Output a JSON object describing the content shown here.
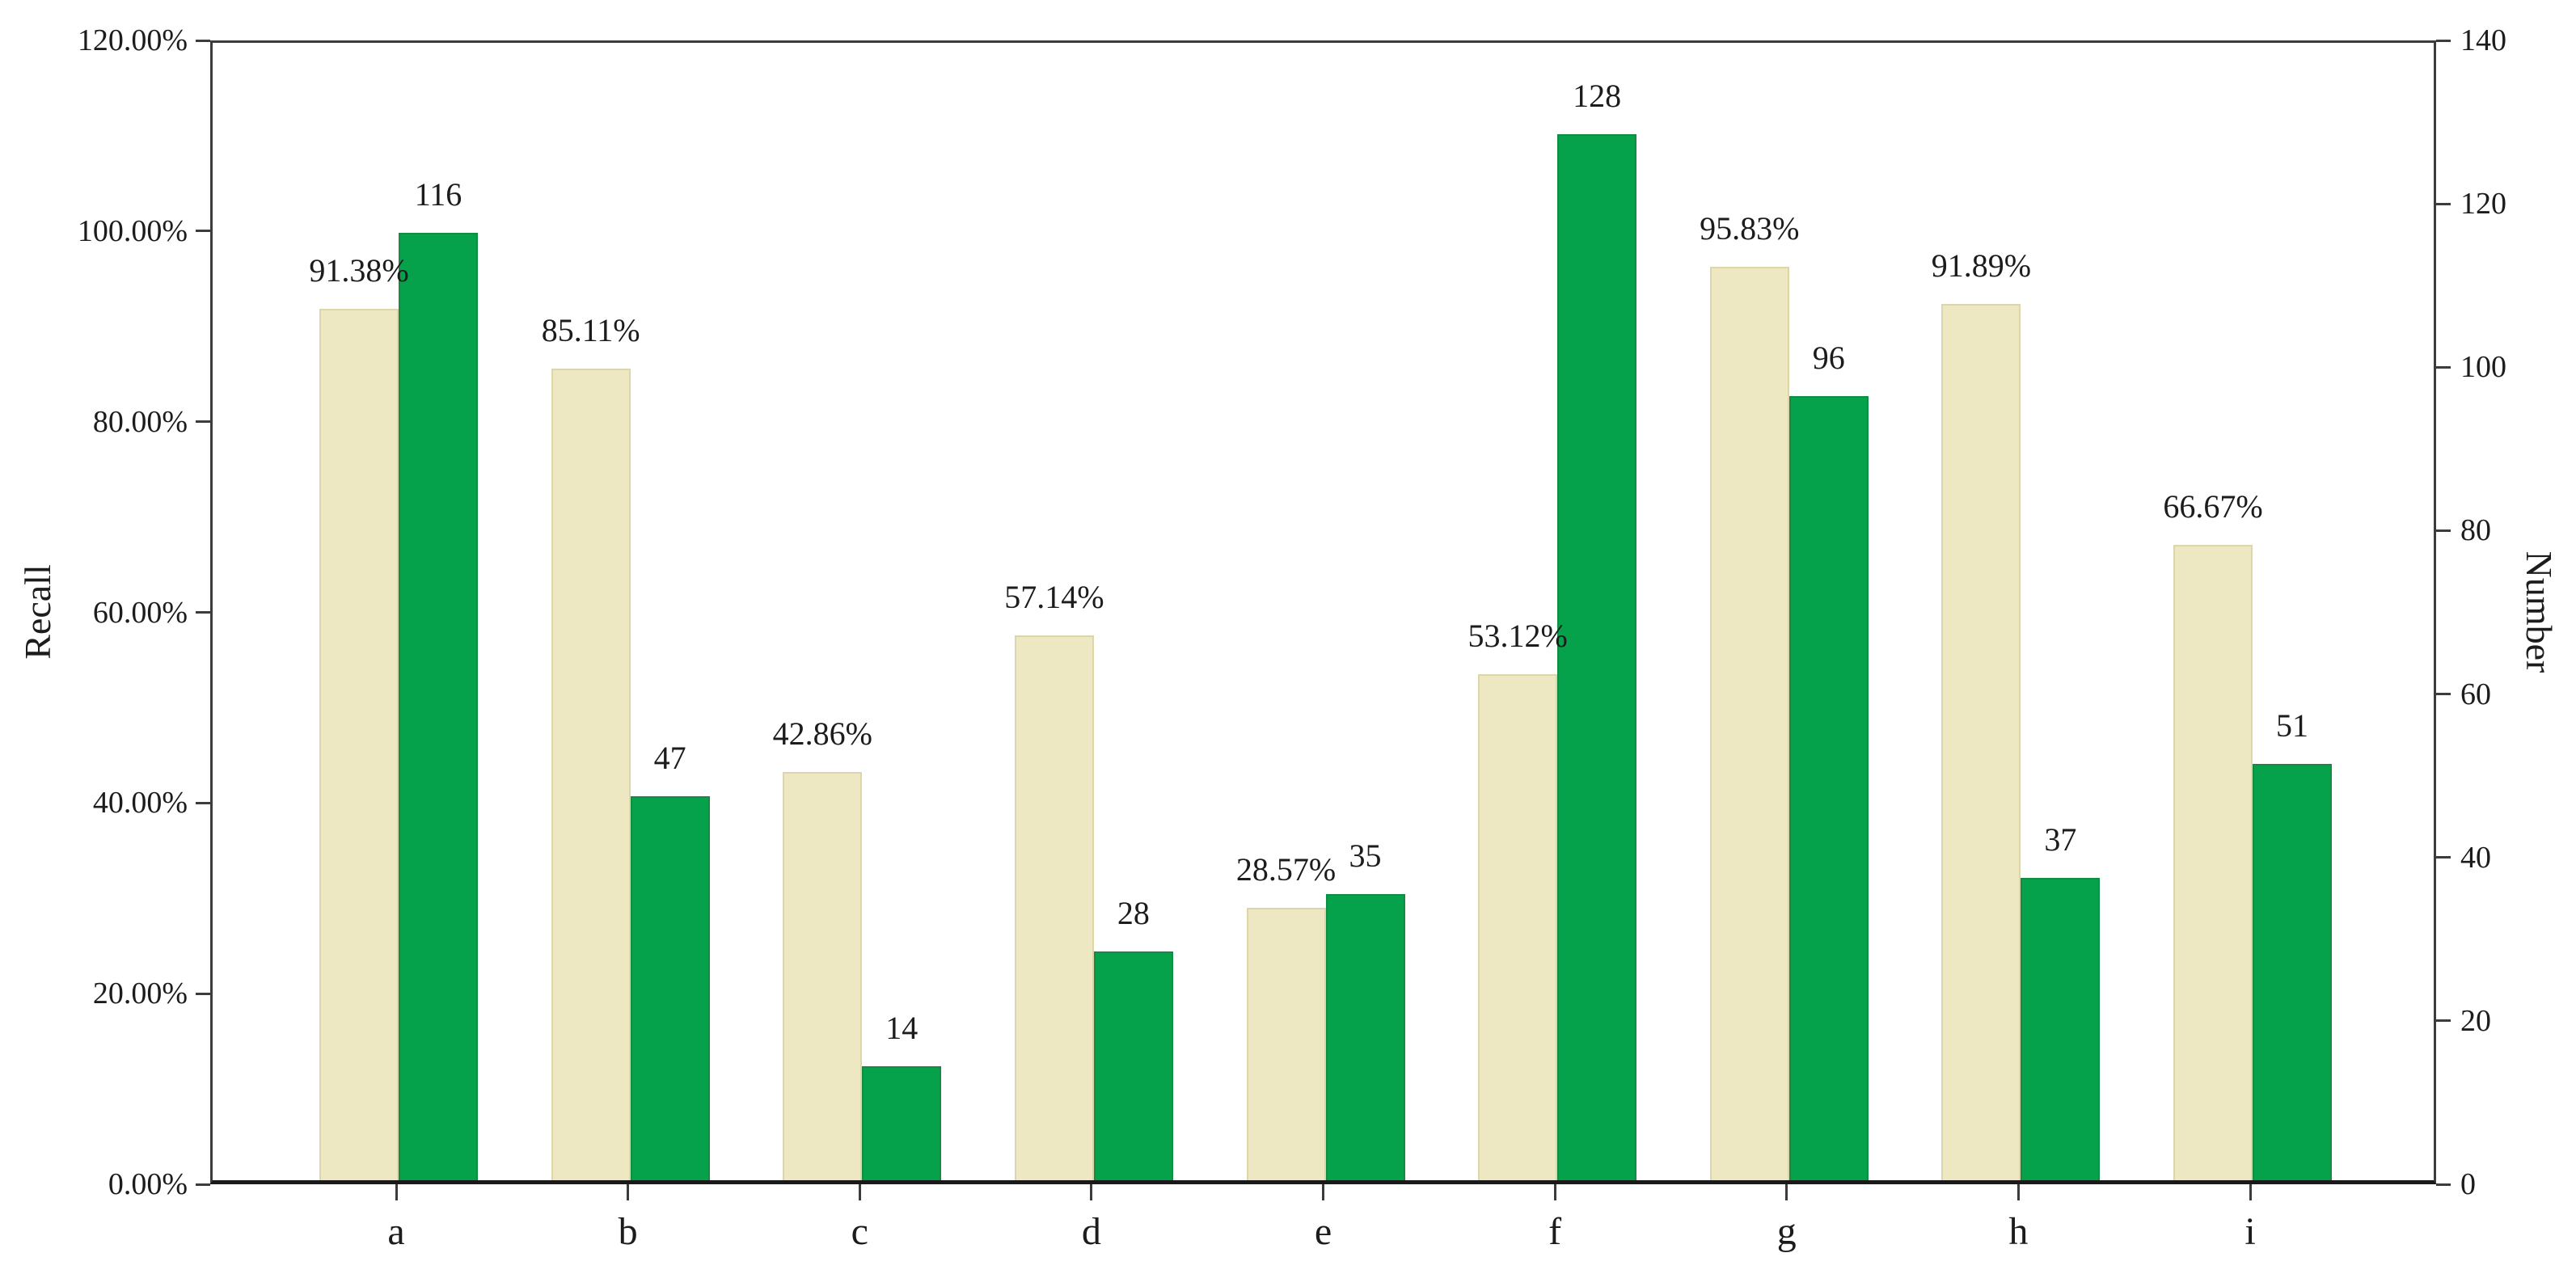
{
  "chart_data": {
    "type": "bar",
    "title": "",
    "xlabel": "",
    "categories": [
      "a",
      "b",
      "c",
      "d",
      "e",
      "f",
      "g",
      "h",
      "i"
    ],
    "series": [
      {
        "name": "Recall",
        "axis": "left",
        "color": "#ede8c2",
        "edge_color": "#dcd6ab",
        "values": [
          91.38,
          85.11,
          42.86,
          57.14,
          28.57,
          53.12,
          95.83,
          91.89,
          66.67
        ],
        "labels": [
          "91.38%",
          "85.11%",
          "42.86%",
          "57.14%",
          "28.57%",
          "53.12%",
          "95.83%",
          "91.89%",
          "66.67%"
        ]
      },
      {
        "name": "Number",
        "axis": "right",
        "color": "#05a14b",
        "edge_color": "#128c43",
        "values": [
          116,
          47,
          14,
          28,
          35,
          128,
          96,
          37,
          51
        ],
        "labels": [
          "116",
          "47",
          "14",
          "28",
          "35",
          "128",
          "96",
          "37",
          "51"
        ]
      }
    ],
    "left_axis": {
      "title": "Recall",
      "min": 0,
      "max": 120,
      "ticks": [
        "0.00%",
        "20.00%",
        "40.00%",
        "60.00%",
        "80.00%",
        "100.00%",
        "120.00%"
      ]
    },
    "right_axis": {
      "title": "Number",
      "min": 0,
      "max": 140,
      "ticks": [
        "0",
        "20",
        "40",
        "60",
        "80",
        "100",
        "120",
        "140"
      ]
    },
    "grid": false,
    "legend": "none"
  },
  "colors": {
    "background": "#ffffff",
    "axis_line": "#3c3c3c",
    "bottom_axis_line": "#191919",
    "text": "#1c1c1c",
    "bar_recall": "#ede8c2",
    "bar_number": "#05a14b"
  }
}
